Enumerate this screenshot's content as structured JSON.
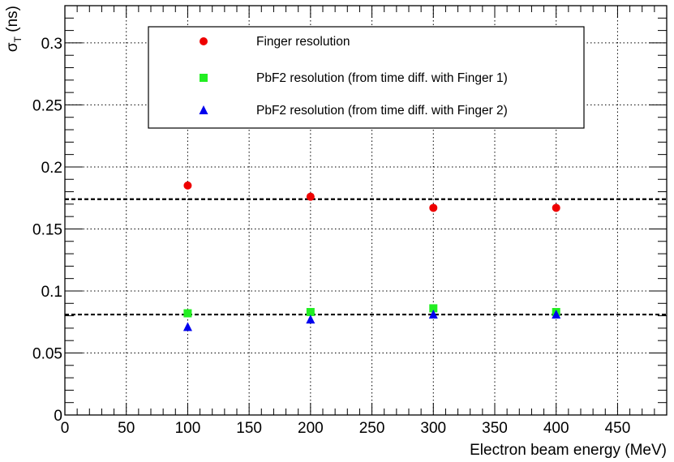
{
  "chart_data": {
    "type": "scatter",
    "xlabel": "Electron beam energy (MeV)",
    "ylabel": "σ",
    "ylabel_sub": "T",
    "ylabel_unit": " (ns)",
    "xlim": [
      0,
      490
    ],
    "ylim": [
      0,
      0.33
    ],
    "xticks": [
      0,
      50,
      100,
      150,
      200,
      250,
      300,
      350,
      400,
      450
    ],
    "xtick_labels": [
      "0",
      "50",
      "100",
      "150",
      "200",
      "250",
      "300",
      "350",
      "400",
      "450"
    ],
    "yticks": [
      0,
      0.05,
      0.1,
      0.15,
      0.2,
      0.25,
      0.3
    ],
    "ytick_labels": [
      "0",
      "0.05",
      "0.1",
      "0.15",
      "0.2",
      "0.25",
      "0.3"
    ],
    "grid": true,
    "legend_position": "top-center",
    "series": [
      {
        "name": "Finger resolution",
        "marker": "circle",
        "color": "#ee0000",
        "x": [
          100,
          200,
          300,
          400
        ],
        "y": [
          0.185,
          0.176,
          0.167,
          0.167
        ]
      },
      {
        "name": "PbF2 resolution (from time diff. with Finger 1)",
        "marker": "square",
        "color": "#22ee22",
        "x": [
          100,
          200,
          300,
          400
        ],
        "y": [
          0.082,
          0.083,
          0.086,
          0.083
        ]
      },
      {
        "name": "PbF2 resolution (from time diff. with Finger 2)",
        "marker": "triangle",
        "color": "#0000ee",
        "x": [
          100,
          200,
          300,
          400
        ],
        "y": [
          0.071,
          0.077,
          0.081,
          0.081
        ]
      }
    ],
    "reference_lines": [
      {
        "y": 0.174,
        "style": "dashed",
        "color": "#000000"
      },
      {
        "y": 0.081,
        "style": "dashed",
        "color": "#000000"
      }
    ]
  }
}
